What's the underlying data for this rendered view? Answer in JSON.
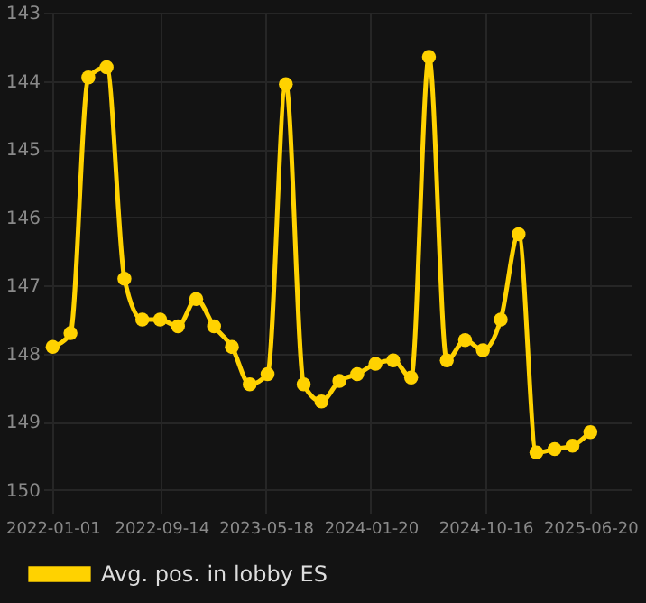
{
  "chart_data": {
    "type": "line",
    "x": [
      "2022-01-01",
      "2022-02-12",
      "2022-03-26",
      "2022-05-08",
      "2022-06-19",
      "2022-07-31",
      "2022-09-11",
      "2022-10-23",
      "2022-12-05",
      "2023-01-16",
      "2023-02-27",
      "2023-04-10",
      "2023-05-22",
      "2023-07-04",
      "2023-08-15",
      "2023-09-26",
      "2023-11-07",
      "2023-12-19",
      "2024-01-31",
      "2024-03-13",
      "2024-04-24",
      "2024-06-05",
      "2024-07-17",
      "2024-08-29",
      "2024-10-10",
      "2024-11-21",
      "2025-01-02",
      "2025-02-13",
      "2025-03-28",
      "2025-05-09",
      "2025-06-20"
    ],
    "series": [
      {
        "name": "Avg. pos. in lobby ES",
        "color": "#ffd200",
        "values": [
          147.9,
          147.7,
          143.95,
          143.8,
          146.9,
          147.5,
          147.5,
          147.6,
          147.2,
          147.6,
          147.9,
          148.45,
          148.3,
          144.05,
          148.45,
          148.7,
          148.4,
          148.3,
          148.15,
          148.1,
          148.35,
          143.65,
          148.1,
          147.8,
          147.95,
          147.5,
          146.25,
          149.45,
          149.4,
          149.35,
          149.15
        ]
      }
    ],
    "xlim": [
      "2021-12-10",
      "2025-09-25"
    ],
    "xticks": [
      "2022-01-01",
      "2022-09-14",
      "2023-05-18",
      "2024-01-20",
      "2024-10-16",
      "2025-06-20"
    ],
    "ylim": [
      150.2,
      143
    ],
    "yticks": [
      143,
      144,
      145,
      146,
      147,
      148,
      149,
      150
    ],
    "grid": true,
    "legend": "bottom",
    "marker": "circle",
    "line_style": "solid"
  }
}
